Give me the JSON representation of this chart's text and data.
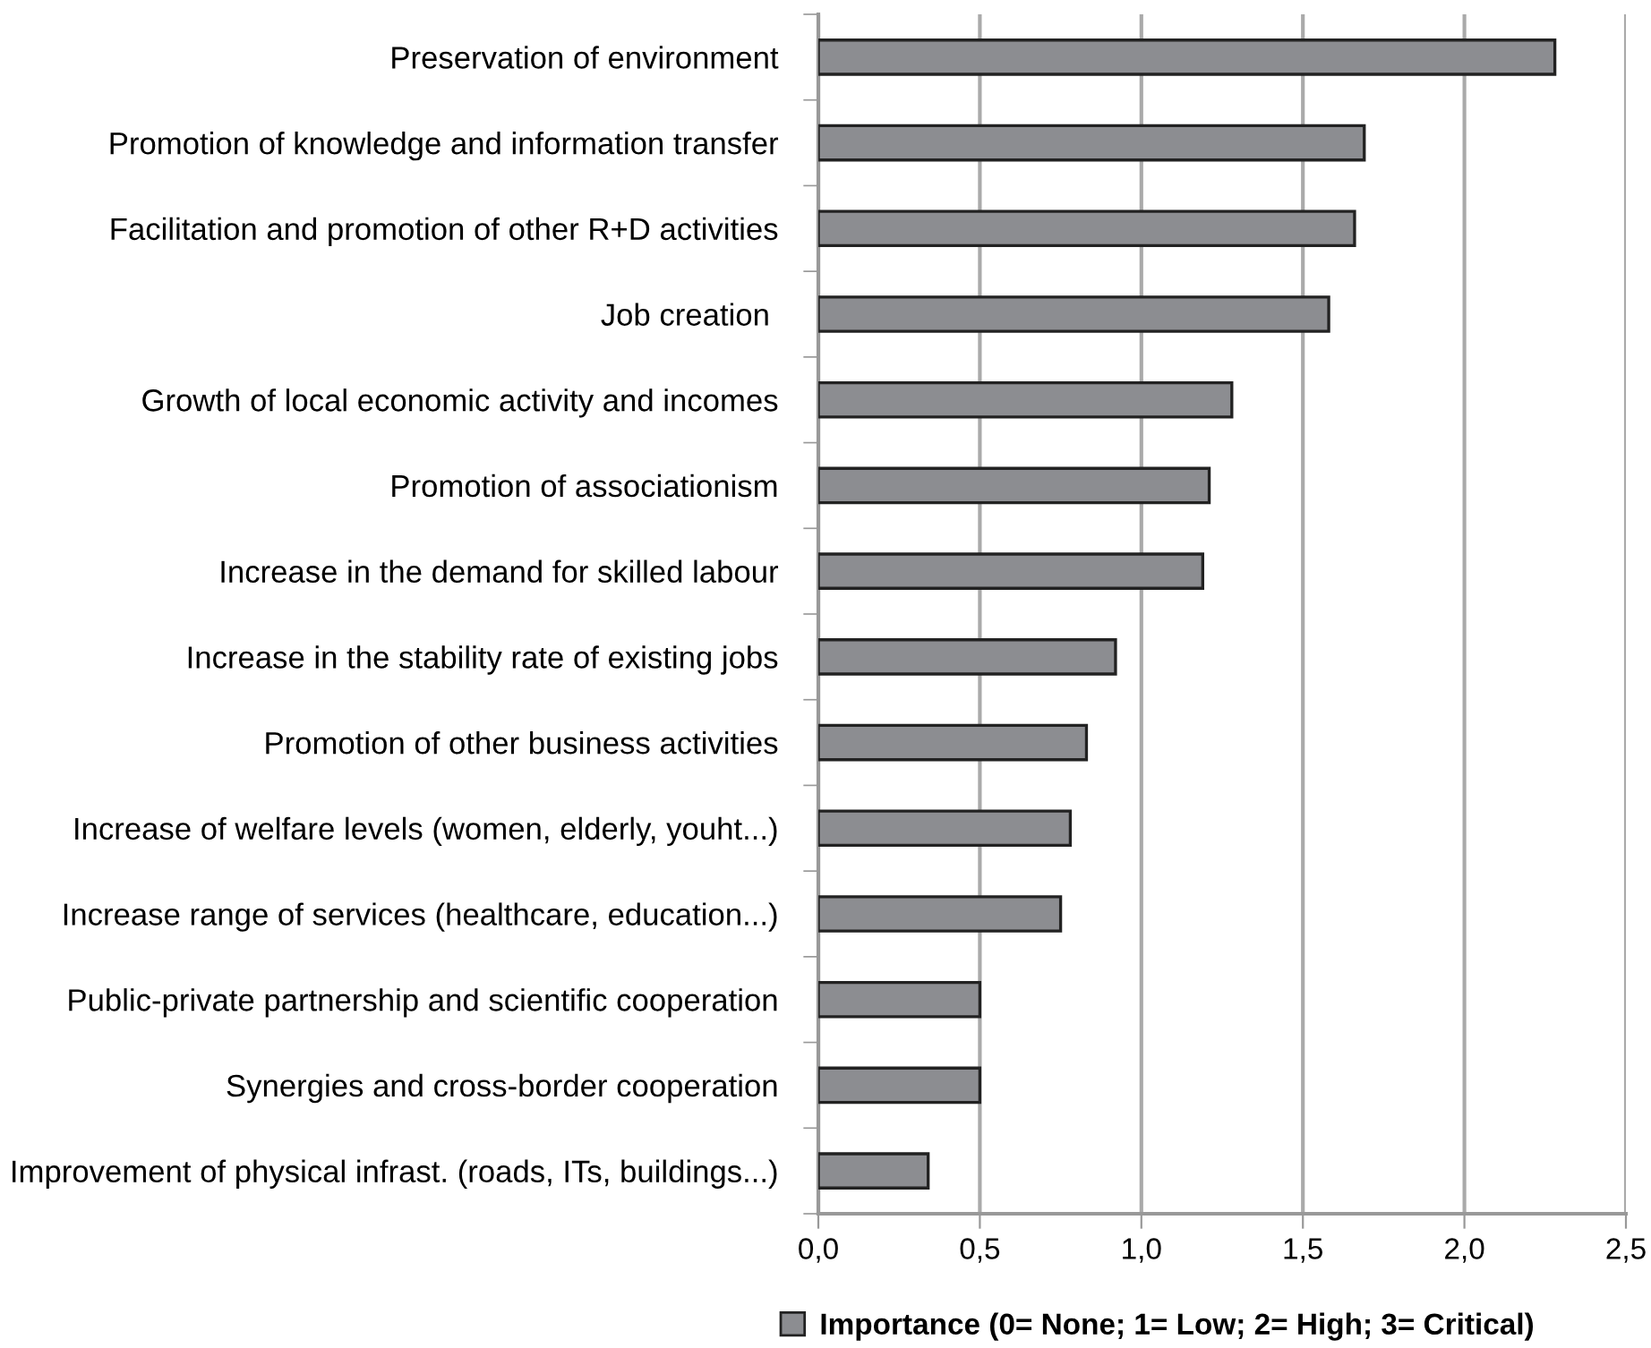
{
  "chart_data": {
    "type": "bar",
    "orientation": "horizontal",
    "categories": [
      "Preservation of environment",
      "Promotion of knowledge and information transfer",
      "Facilitation and promotion of other R+D activities",
      "Job creation ",
      "Growth of local economic activity and incomes",
      "Promotion of associationism",
      "Increase in the demand for skilled labour",
      "Increase in the stability rate of existing jobs",
      "Promotion of other business activities",
      "Increase of welfare levels (women, elderly, youht...)",
      "Increase range of services (healthcare, education...)",
      "Public-private partnership and scientific cooperation",
      "Synergies and cross-border cooperation",
      "Improvement of physical infrast. (roads, ITs, buildings...)"
    ],
    "series": [
      {
        "name": "Importance (0= None; 1= Low; 2= High; 3= Critical)",
        "color": "#8c8d91",
        "values": [
          2.28,
          1.69,
          1.66,
          1.58,
          1.28,
          1.21,
          1.19,
          0.92,
          0.83,
          0.78,
          0.75,
          0.5,
          0.5,
          0.34
        ]
      }
    ],
    "xlim": [
      0,
      2.5
    ],
    "xticks": [
      {
        "value": 0,
        "label": "0,0"
      },
      {
        "value": 0.5,
        "label": "0,5"
      },
      {
        "value": 1,
        "label": "1,0"
      },
      {
        "value": 1.5,
        "label": "1,5"
      },
      {
        "value": 2,
        "label": "2,0"
      },
      {
        "value": 2.5,
        "label": "2,5"
      }
    ],
    "grid": "x",
    "legend": "bottom"
  }
}
